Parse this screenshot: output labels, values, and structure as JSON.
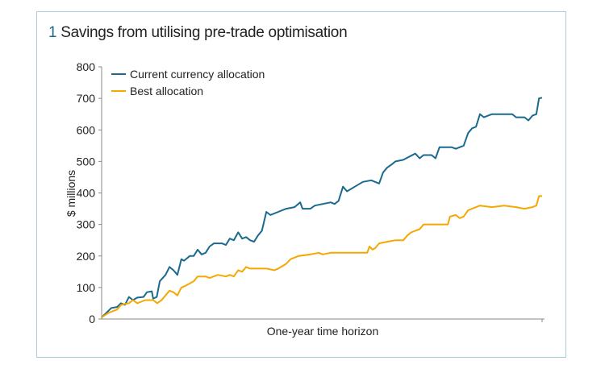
{
  "figure": {
    "number": "1",
    "title": "Savings from utilising pre-trade optimisation"
  },
  "chart_data": {
    "type": "line",
    "title": "Savings from utilising pre-trade optimisation",
    "xlabel": "One-year time horizon",
    "ylabel": "$ millions",
    "xlim": [
      0,
      100
    ],
    "ylim": [
      0,
      800
    ],
    "yticks": [
      "0",
      "100",
      "200",
      "300",
      "400",
      "500",
      "600",
      "700",
      "800"
    ],
    "grid": false,
    "legend_position": "top-left",
    "series": [
      {
        "name": "Current currency allocation",
        "color": "#1a6a8e",
        "x": [
          0,
          1.1,
          2.2,
          3.5,
          4.4,
          5.3,
          6.2,
          7.1,
          8.1,
          9.5,
          10.3,
          11.4,
          11.7,
          12.5,
          13.2,
          14.5,
          15.4,
          16.3,
          17.2,
          18.1,
          18.7,
          20,
          20.9,
          21.8,
          22.7,
          23.6,
          24.5,
          25.5,
          27.3,
          28.2,
          29.1,
          30,
          31,
          31.9,
          32.8,
          33.7,
          34.6,
          35.5,
          36.4,
          37.4,
          38.3,
          40.1,
          41.9,
          43.8,
          45.1,
          45.6,
          47.4,
          48.4,
          50.2,
          52,
          52.9,
          53.8,
          54.8,
          55.7,
          57.5,
          59.3,
          61.2,
          63,
          63.9,
          64.8,
          65.8,
          66.7,
          68.5,
          71.2,
          72.2,
          73.1,
          74.9,
          75.8,
          76.7,
          79.5,
          80.4,
          82.2,
          83.2,
          84.1,
          85,
          85.9,
          86.8,
          88.6,
          90.5,
          93.2,
          94.1,
          96,
          96.9,
          97.8,
          98.7,
          99.3,
          100
        ],
        "y": [
          5,
          20,
          35,
          38,
          50,
          45,
          70,
          60,
          68,
          70,
          85,
          88,
          65,
          70,
          120,
          140,
          165,
          155,
          140,
          190,
          185,
          200,
          200,
          220,
          205,
          210,
          230,
          240,
          240,
          235,
          255,
          250,
          275,
          255,
          260,
          250,
          245,
          265,
          280,
          340,
          330,
          340,
          350,
          355,
          370,
          350,
          350,
          360,
          365,
          370,
          365,
          375,
          420,
          405,
          420,
          435,
          440,
          430,
          465,
          480,
          490,
          500,
          505,
          525,
          510,
          520,
          520,
          510,
          545,
          545,
          540,
          550,
          590,
          605,
          610,
          650,
          640,
          650,
          650,
          650,
          640,
          640,
          630,
          645,
          650,
          700,
          702
        ]
      },
      {
        "name": "Best allocation",
        "color": "#f5a800",
        "x": [
          0,
          1.6,
          3.5,
          4.4,
          6.2,
          7.1,
          8.1,
          9,
          9.9,
          11.7,
          12.6,
          13.6,
          14.5,
          15.4,
          16.3,
          17.2,
          18.1,
          19,
          20.9,
          21.8,
          23.6,
          24.5,
          26.4,
          28.2,
          29.1,
          30,
          31,
          31.9,
          32.8,
          33.7,
          37.4,
          39.2,
          40.1,
          41.9,
          42.9,
          44.7,
          47.4,
          49.3,
          50.2,
          52,
          53.8,
          60.3,
          60.8,
          61.5,
          62.1,
          63,
          64.8,
          66.7,
          68.5,
          69.4,
          70.3,
          71.2,
          72.2,
          73.1,
          78.6,
          79.1,
          80.4,
          81.3,
          82.2,
          83.2,
          84.1,
          85.9,
          88.6,
          91.4,
          94.1,
          96,
          97.8,
          98.7,
          99.3,
          100
        ],
        "y": [
          5,
          20,
          30,
          45,
          50,
          60,
          50,
          55,
          60,
          60,
          50,
          60,
          75,
          90,
          85,
          75,
          100,
          105,
          120,
          135,
          135,
          130,
          140,
          135,
          140,
          135,
          155,
          150,
          165,
          160,
          160,
          155,
          160,
          175,
          190,
          200,
          205,
          210,
          205,
          210,
          210,
          210,
          230,
          220,
          225,
          240,
          245,
          250,
          250,
          265,
          275,
          280,
          285,
          300,
          300,
          325,
          330,
          320,
          325,
          345,
          350,
          360,
          355,
          360,
          355,
          350,
          355,
          360,
          390,
          390
        ]
      }
    ]
  }
}
